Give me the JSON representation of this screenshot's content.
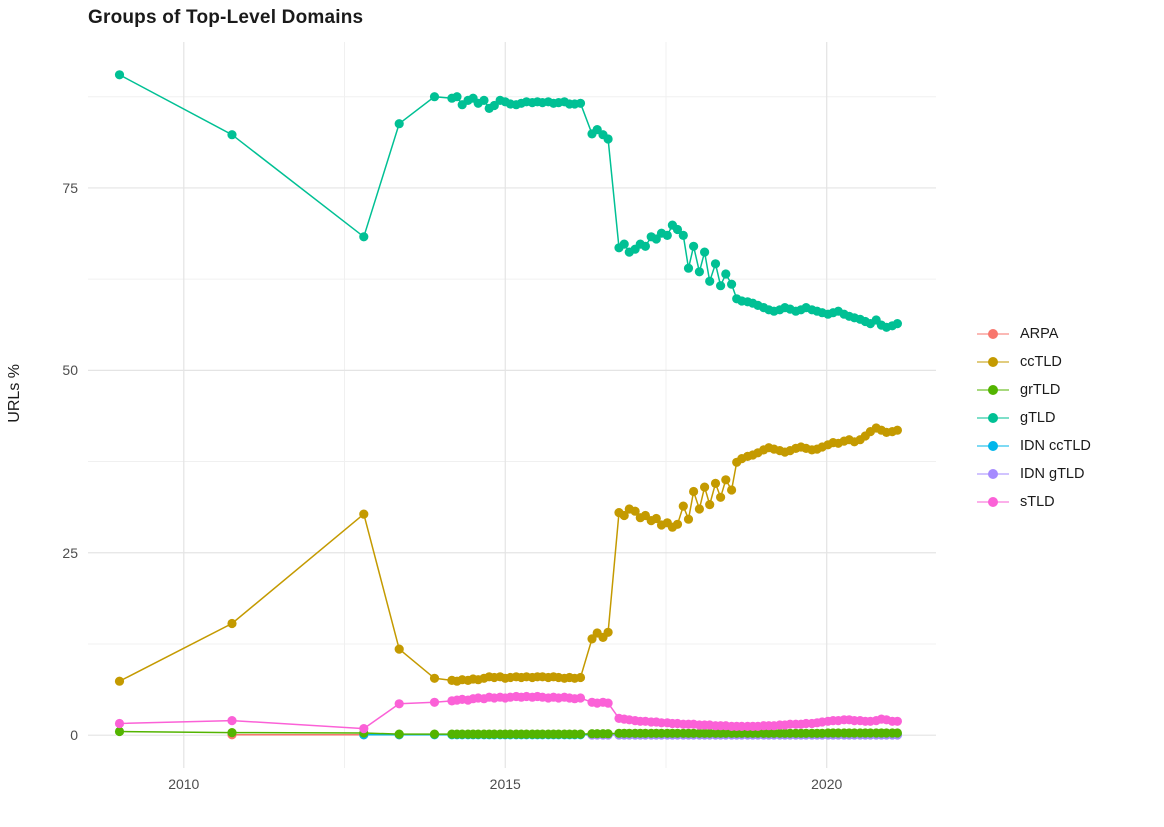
{
  "title": "Groups of Top-Level Domains",
  "chart_data": {
    "type": "line",
    "title": "Groups of Top-Level Domains",
    "xlabel": "",
    "ylabel": "URLs %",
    "grid": true,
    "legend_position": "right",
    "xlim": [
      2008.51,
      2021.7
    ],
    "ylim": [
      -4.5,
      95.0
    ],
    "x_major_ticks": [
      2010,
      2015,
      2020
    ],
    "x_major_labels": [
      "2010",
      "2015",
      "2020"
    ],
    "x_minor_ticks": [
      2012.5,
      2017.5
    ],
    "y_major_ticks": [
      0,
      25,
      50,
      75
    ],
    "y_major_labels": [
      "0",
      "25",
      "50",
      "75"
    ],
    "y_minor_ticks": [
      12.5,
      37.5,
      62.5,
      87.5
    ],
    "x": [
      2009,
      2010.75,
      2012.8,
      2013.35,
      2013.9,
      2014.17,
      2014.25,
      2014.33,
      2014.42,
      2014.5,
      2014.58,
      2014.67,
      2014.75,
      2014.83,
      2014.92,
      2015.0,
      2015.08,
      2015.17,
      2015.25,
      2015.33,
      2015.42,
      2015.5,
      2015.58,
      2015.67,
      2015.75,
      2015.83,
      2015.92,
      2016.0,
      2016.08,
      2016.17,
      2016.35,
      2016.43,
      2016.52,
      2016.6,
      2016.77,
      2016.85,
      2016.93,
      2017.02,
      2017.1,
      2017.18,
      2017.27,
      2017.35,
      2017.43,
      2017.52,
      2017.6,
      2017.68,
      2017.77,
      2017.85,
      2017.93,
      2018.02,
      2018.1,
      2018.18,
      2018.27,
      2018.35,
      2018.43,
      2018.52,
      2018.6,
      2018.68,
      2018.77,
      2018.85,
      2018.93,
      2019.02,
      2019.1,
      2019.18,
      2019.27,
      2019.35,
      2019.43,
      2019.52,
      2019.6,
      2019.68,
      2019.77,
      2019.85,
      2019.93,
      2020.02,
      2020.1,
      2020.18,
      2020.27,
      2020.35,
      2020.43,
      2020.52,
      2020.6,
      2020.68,
      2020.77,
      2020.85,
      2020.93,
      2021.02,
      2021.1
    ],
    "series": [
      {
        "name": "ARPA",
        "color": "#F8766D",
        "start_index": 1,
        "values": [
          0.05,
          0.05,
          0.05
        ]
      },
      {
        "name": "ccTLD",
        "color": "#C49A00",
        "start_index": 0,
        "values": [
          7.4,
          15.3,
          30.3,
          11.8,
          7.8,
          7.5,
          7.4,
          7.6,
          7.5,
          7.7,
          7.6,
          7.8,
          8.0,
          7.9,
          8.0,
          7.8,
          7.9,
          8.0,
          7.9,
          8.0,
          7.9,
          8.0,
          8.0,
          7.9,
          8.0,
          7.9,
          7.8,
          7.9,
          7.8,
          7.9,
          13.2,
          14.0,
          13.4,
          14.1,
          30.5,
          30.1,
          31.0,
          30.7,
          29.8,
          30.1,
          29.4,
          29.7,
          28.8,
          29.1,
          28.5,
          28.9,
          31.4,
          29.6,
          33.4,
          31.0,
          34.0,
          31.6,
          34.5,
          32.6,
          35.0,
          33.6,
          37.4,
          37.9,
          38.2,
          38.4,
          38.7,
          39.1,
          39.4,
          39.2,
          39.0,
          38.8,
          39.0,
          39.3,
          39.5,
          39.3,
          39.1,
          39.2,
          39.5,
          39.8,
          40.1,
          40.0,
          40.3,
          40.5,
          40.2,
          40.5,
          41.0,
          41.6,
          42.1,
          41.8,
          41.5,
          41.6,
          41.8
        ]
      },
      {
        "name": "grTLD",
        "color": "#53B400",
        "start_index": 0,
        "values": [
          0.5,
          0.35,
          0.3,
          0.15,
          0.15,
          0.15,
          0.15,
          0.15,
          0.15,
          0.15,
          0.15,
          0.15,
          0.15,
          0.15,
          0.15,
          0.15,
          0.15,
          0.15,
          0.15,
          0.15,
          0.15,
          0.15,
          0.15,
          0.15,
          0.15,
          0.15,
          0.15,
          0.15,
          0.15,
          0.15,
          0.2,
          0.2,
          0.2,
          0.2,
          0.25,
          0.25,
          0.25,
          0.25,
          0.25,
          0.25,
          0.25,
          0.25,
          0.25,
          0.25,
          0.25,
          0.25,
          0.25,
          0.25,
          0.25,
          0.25,
          0.25,
          0.25,
          0.25,
          0.25,
          0.25,
          0.25,
          0.25,
          0.25,
          0.25,
          0.25,
          0.25,
          0.25,
          0.25,
          0.25,
          0.25,
          0.25,
          0.25,
          0.25,
          0.25,
          0.25,
          0.25,
          0.25,
          0.25,
          0.3,
          0.3,
          0.3,
          0.3,
          0.3,
          0.3,
          0.3,
          0.3,
          0.3,
          0.3,
          0.3,
          0.3,
          0.3,
          0.3
        ]
      },
      {
        "name": "gTLD",
        "color": "#00C094",
        "start_index": 0,
        "values": [
          90.5,
          82.3,
          68.3,
          83.8,
          87.5,
          87.3,
          87.5,
          86.4,
          87.0,
          87.3,
          86.6,
          87.0,
          85.9,
          86.3,
          87.0,
          86.8,
          86.5,
          86.4,
          86.6,
          86.8,
          86.7,
          86.8,
          86.7,
          86.8,
          86.6,
          86.7,
          86.8,
          86.5,
          86.5,
          86.6,
          82.4,
          83.0,
          82.3,
          81.7,
          66.8,
          67.3,
          66.2,
          66.6,
          67.3,
          67.0,
          68.3,
          68.0,
          68.8,
          68.5,
          69.9,
          69.3,
          68.5,
          64.0,
          67.0,
          63.5,
          66.2,
          62.2,
          64.6,
          61.6,
          63.2,
          61.8,
          59.8,
          59.5,
          59.4,
          59.2,
          58.9,
          58.6,
          58.3,
          58.1,
          58.3,
          58.6,
          58.4,
          58.1,
          58.3,
          58.6,
          58.3,
          58.1,
          57.9,
          57.7,
          57.9,
          58.1,
          57.7,
          57.4,
          57.2,
          57.0,
          56.7,
          56.4,
          56.9,
          56.2,
          55.9,
          56.1,
          56.4
        ]
      },
      {
        "name": "IDN ccTLD",
        "color": "#00B6EB",
        "start_index": 2,
        "values": [
          0.05,
          0.05,
          0.05,
          0.05,
          0.05,
          0.05,
          0.05,
          0.05,
          0.05,
          0.05,
          0.05,
          0.05,
          0.05,
          0.05,
          0.05,
          0.05,
          0.05,
          0.05,
          0.05,
          0.05,
          0.05,
          0.05,
          0.05,
          0.05,
          0.05,
          0.05,
          0.05,
          0.05,
          0.05,
          0.05,
          0.05,
          0.05,
          0.05,
          0.05,
          0.05,
          0.05,
          0.05,
          0.05,
          0.05,
          0.05,
          0.05,
          0.05,
          0.05,
          0.05,
          0.05,
          0.05,
          0.05,
          0.05,
          0.05,
          0.05,
          0.05,
          0.05,
          0.05,
          0.05,
          0.05,
          0.05,
          0.05,
          0.05,
          0.05,
          0.05,
          0.05,
          0.05,
          0.05,
          0.05,
          0.05,
          0.05,
          0.05,
          0.05,
          0.05,
          0.05,
          0.05,
          0.05,
          0.05,
          0.05,
          0.05,
          0.05,
          0.05,
          0.05,
          0.05,
          0.05,
          0.05,
          0.05,
          0.05,
          0.05,
          0.05
        ]
      },
      {
        "name": "IDN gTLD",
        "color": "#A58AFF",
        "start_index": 30,
        "values": [
          0.02,
          0.02,
          0.02,
          0.02,
          0.02,
          0.02,
          0.02,
          0.02,
          0.02,
          0.02,
          0.02,
          0.02,
          0.02,
          0.02,
          0.02,
          0.02,
          0.02,
          0.02,
          0.02,
          0.02,
          0.02,
          0.02,
          0.02,
          0.02,
          0.02,
          0.02,
          0.02,
          0.02,
          0.02,
          0.02,
          0.02,
          0.02,
          0.02,
          0.02,
          0.02,
          0.02,
          0.02,
          0.02,
          0.02,
          0.02,
          0.02,
          0.02,
          0.02,
          0.02,
          0.02,
          0.02,
          0.02,
          0.02,
          0.02,
          0.02,
          0.02,
          0.02,
          0.02,
          0.02,
          0.02,
          0.02,
          0.02
        ]
      },
      {
        "name": "sTLD",
        "color": "#FB61D7",
        "start_index": 0,
        "values": [
          1.6,
          2.0,
          0.9,
          4.3,
          4.5,
          4.7,
          4.8,
          4.9,
          4.8,
          5.0,
          5.1,
          5.0,
          5.2,
          5.1,
          5.2,
          5.1,
          5.2,
          5.3,
          5.2,
          5.3,
          5.2,
          5.3,
          5.2,
          5.1,
          5.2,
          5.1,
          5.2,
          5.1,
          5.0,
          5.1,
          4.5,
          4.4,
          4.5,
          4.4,
          2.3,
          2.2,
          2.1,
          2.0,
          1.9,
          1.9,
          1.8,
          1.8,
          1.7,
          1.7,
          1.6,
          1.6,
          1.5,
          1.5,
          1.5,
          1.4,
          1.4,
          1.4,
          1.3,
          1.3,
          1.3,
          1.2,
          1.2,
          1.2,
          1.2,
          1.2,
          1.2,
          1.3,
          1.3,
          1.3,
          1.4,
          1.4,
          1.5,
          1.5,
          1.5,
          1.6,
          1.6,
          1.7,
          1.8,
          1.9,
          2.0,
          2.0,
          2.1,
          2.1,
          2.0,
          2.0,
          1.9,
          1.9,
          2.0,
          2.2,
          2.1,
          1.9,
          1.9
        ]
      }
    ],
    "style": {
      "grid_major_color": "#E4E4E4",
      "grid_minor_color": "#F0F0F0",
      "point_radius": 4.6,
      "line_width": 1.5
    }
  }
}
